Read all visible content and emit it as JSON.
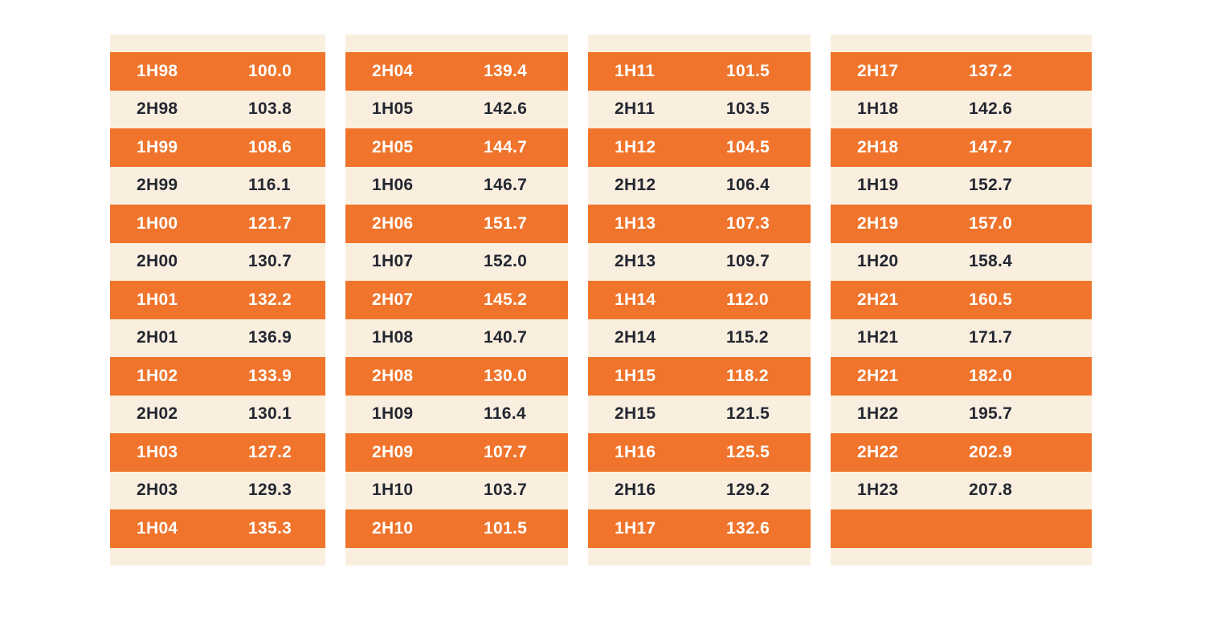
{
  "table": {
    "columns": [
      {
        "rows": [
          {
            "label": "1H98",
            "value": "100.0"
          },
          {
            "label": "2H98",
            "value": "103.8"
          },
          {
            "label": "1H99",
            "value": "108.6"
          },
          {
            "label": "2H99",
            "value": "116.1"
          },
          {
            "label": "1H00",
            "value": "121.7"
          },
          {
            "label": "2H00",
            "value": "130.7"
          },
          {
            "label": "1H01",
            "value": "132.2"
          },
          {
            "label": "2H01",
            "value": "136.9"
          },
          {
            "label": "1H02",
            "value": "133.9"
          },
          {
            "label": "2H02",
            "value": "130.1"
          },
          {
            "label": "1H03",
            "value": "127.2"
          },
          {
            "label": "2H03",
            "value": "129.3"
          },
          {
            "label": "1H04",
            "value": "135.3"
          }
        ]
      },
      {
        "rows": [
          {
            "label": "2H04",
            "value": "139.4"
          },
          {
            "label": "1H05",
            "value": "142.6"
          },
          {
            "label": "2H05",
            "value": "144.7"
          },
          {
            "label": "1H06",
            "value": "146.7"
          },
          {
            "label": "2H06",
            "value": "151.7"
          },
          {
            "label": "1H07",
            "value": "152.0"
          },
          {
            "label": "2H07",
            "value": "145.2"
          },
          {
            "label": "1H08",
            "value": "140.7"
          },
          {
            "label": "2H08",
            "value": "130.0"
          },
          {
            "label": "1H09",
            "value": "116.4"
          },
          {
            "label": "2H09",
            "value": "107.7"
          },
          {
            "label": "1H10",
            "value": "103.7"
          },
          {
            "label": "2H10",
            "value": "101.5"
          }
        ]
      },
      {
        "rows": [
          {
            "label": "1H11",
            "value": "101.5"
          },
          {
            "label": "2H11",
            "value": "103.5"
          },
          {
            "label": "1H12",
            "value": "104.5"
          },
          {
            "label": "2H12",
            "value": "106.4"
          },
          {
            "label": "1H13",
            "value": "107.3"
          },
          {
            "label": "2H13",
            "value": "109.7"
          },
          {
            "label": "1H14",
            "value": "112.0"
          },
          {
            "label": "2H14",
            "value": "115.2"
          },
          {
            "label": "1H15",
            "value": "118.2"
          },
          {
            "label": "2H15",
            "value": "121.5"
          },
          {
            "label": "1H16",
            "value": "125.5"
          },
          {
            "label": "2H16",
            "value": "129.2"
          },
          {
            "label": "1H17",
            "value": "132.6"
          }
        ]
      },
      {
        "rows": [
          {
            "label": "2H17",
            "value": "137.2"
          },
          {
            "label": "1H18",
            "value": "142.6"
          },
          {
            "label": "2H18",
            "value": "147.7"
          },
          {
            "label": "1H19",
            "value": "152.7"
          },
          {
            "label": "2H19",
            "value": "157.0"
          },
          {
            "label": "1H20",
            "value": "158.4"
          },
          {
            "label": "2H21",
            "value": "160.5"
          },
          {
            "label": "1H21",
            "value": "171.7"
          },
          {
            "label": "2H21",
            "value": "182.0"
          },
          {
            "label": "1H22",
            "value": "195.7"
          },
          {
            "label": "2H22",
            "value": "202.9"
          },
          {
            "label": "1H23",
            "value": "207.8"
          },
          {
            "label": "",
            "value": ""
          }
        ]
      }
    ]
  },
  "colors": {
    "row_orange": "#F0742B",
    "row_cream": "#FAEFDF",
    "text_on_orange": "#FFFFFF",
    "text_on_cream": "#232731",
    "page_background": "#FFFFFF"
  }
}
